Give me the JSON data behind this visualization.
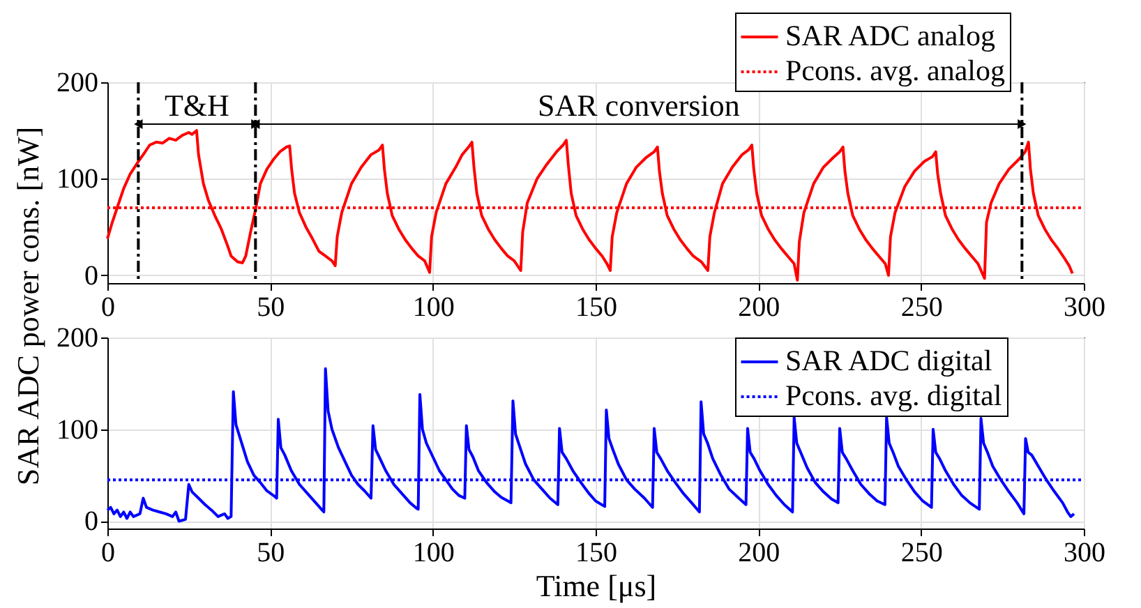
{
  "chart_data": [
    {
      "type": "line",
      "ylabel": "SAR ADC power cons. [nW]",
      "xlim": [
        0,
        300
      ],
      "xticks": [
        0,
        50,
        100,
        150,
        200,
        250,
        300
      ],
      "ylim": [
        -8,
        200
      ],
      "yticks": [
        0,
        100,
        200
      ],
      "grid": true,
      "legend": "top right",
      "series": [
        {
          "name": "SAR ADC analog",
          "color": "#ff0000",
          "line_style": "solid",
          "x": [
            0,
            1.5,
            3,
            5,
            7,
            9.5,
            11,
            13,
            15,
            17,
            19,
            21,
            23,
            25,
            26,
            27.4,
            28,
            29.5,
            31,
            33,
            35,
            37,
            38,
            40,
            41.5,
            42.5,
            44,
            45.5,
            47,
            49,
            51,
            53,
            55,
            56,
            56.6,
            57.5,
            59,
            61,
            63,
            65,
            67,
            69,
            70,
            70.6,
            72,
            75,
            78,
            81,
            83.5,
            84.5,
            85.1,
            86,
            87.5,
            89.5,
            91.5,
            93.5,
            95.5,
            97.5,
            99,
            99.6,
            101,
            104,
            107,
            109,
            111,
            112,
            112.6,
            113.5,
            115,
            117,
            119,
            121,
            123,
            125,
            127,
            127.6,
            129,
            132,
            135,
            138,
            140,
            141,
            141.6,
            142.5,
            144,
            146,
            148,
            150,
            152,
            153.5,
            154.5,
            155.1,
            156.5,
            159.5,
            162.5,
            165.5,
            168,
            169,
            169.6,
            170.5,
            172,
            174,
            176,
            178,
            180,
            182.5,
            184.5,
            185.1,
            186.5,
            189,
            192,
            195,
            197,
            198,
            198.6,
            199.5,
            201,
            203,
            205,
            207,
            209,
            211,
            212,
            212.6,
            214,
            217,
            220,
            223,
            225,
            226,
            226.6,
            227.5,
            229,
            231,
            233,
            235,
            237,
            239,
            240,
            240.6,
            242,
            245,
            248,
            251,
            253.5,
            254.5,
            255.1,
            256,
            257.5,
            259.5,
            261.5,
            263.5,
            265.5,
            267.5,
            269.5,
            270.1,
            271.5,
            274,
            277,
            280,
            282,
            283,
            283.6,
            284.5,
            286,
            288,
            290,
            292,
            294,
            295.5,
            296.5
          ],
          "values": [
            38,
            55,
            70,
            90,
            105,
            118,
            125,
            135,
            138,
            137,
            142,
            140,
            145,
            148,
            146,
            150,
            125,
            95,
            78,
            62,
            48,
            30,
            20,
            14,
            13,
            20,
            45,
            68,
            95,
            110,
            120,
            128,
            133,
            134,
            110,
            85,
            65,
            50,
            38,
            25,
            20,
            15,
            10,
            40,
            65,
            95,
            112,
            125,
            130,
            135,
            110,
            85,
            62,
            48,
            37,
            28,
            20,
            15,
            3,
            40,
            65,
            95,
            112,
            125,
            133,
            138,
            113,
            85,
            62,
            48,
            37,
            28,
            20,
            15,
            5,
            45,
            75,
            100,
            115,
            128,
            135,
            140,
            115,
            85,
            62,
            48,
            37,
            28,
            20,
            12,
            5,
            40,
            65,
            95,
            112,
            122,
            128,
            133,
            108,
            85,
            62,
            48,
            37,
            28,
            20,
            14,
            5,
            40,
            65,
            95,
            112,
            125,
            130,
            135,
            110,
            85,
            62,
            48,
            37,
            28,
            20,
            12,
            -5,
            35,
            65,
            95,
            112,
            122,
            128,
            133,
            108,
            85,
            62,
            48,
            37,
            28,
            20,
            12,
            0,
            40,
            65,
            92,
            108,
            118,
            123,
            128,
            105,
            85,
            62,
            48,
            37,
            28,
            20,
            12,
            -3,
            55,
            75,
            95,
            110,
            120,
            128,
            138,
            110,
            85,
            62,
            48,
            37,
            28,
            18,
            10,
            2
          ]
        },
        {
          "name": "Pcons. avg. analog",
          "color": "#ff0000",
          "line_style": "dotted",
          "x": [
            0,
            300
          ],
          "values": [
            70,
            70
          ]
        }
      ],
      "ref_lines": [
        {
          "axis": "x",
          "value": 9.5,
          "color": "#000000",
          "line_style": "dashed"
        },
        {
          "axis": "x",
          "value": 45.5,
          "color": "#000000",
          "line_style": "dashed"
        },
        {
          "axis": "x",
          "value": 281,
          "color": "#000000",
          "line_style": "dashed"
        }
      ],
      "annotations": [
        "T&H",
        "SAR conversion"
      ]
    },
    {
      "type": "line",
      "xlabel": "Time [μs]",
      "xlim": [
        0,
        300
      ],
      "xticks": [
        0,
        50,
        100,
        150,
        200,
        250,
        300
      ],
      "ylim": [
        -8,
        200
      ],
      "yticks": [
        0,
        100,
        200
      ],
      "grid": true,
      "legend": "top right",
      "series": [
        {
          "name": "SAR ADC digital",
          "color": "#0000ff",
          "line_style": "solid",
          "x": [
            0,
            1,
            2,
            3,
            4,
            5,
            6,
            7,
            8,
            10,
            11,
            12,
            14,
            16,
            18,
            20,
            21,
            22,
            24,
            25,
            26,
            28,
            30,
            32,
            34,
            36,
            37,
            38,
            38.7,
            39.5,
            41,
            43,
            45,
            47,
            49,
            51,
            52,
            52.5,
            53.3,
            54.5,
            56.5,
            59,
            62,
            64,
            66,
            66.5,
            67,
            67.8,
            69,
            71,
            73,
            75,
            77,
            79,
            81,
            81.6,
            82.4,
            83.5,
            85.5,
            88,
            91,
            93,
            95,
            95.5,
            96,
            96.8,
            98,
            100,
            102,
            104,
            106,
            108,
            109.8,
            110.3,
            111.1,
            112.3,
            114,
            116.5,
            119,
            121,
            124,
            124.6,
            125.4,
            126.6,
            128.5,
            131,
            133.5,
            136,
            138.4,
            138.9,
            139.7,
            141,
            143,
            145.5,
            148,
            150,
            152.8,
            153.3,
            154.1,
            155.3,
            157,
            159.5,
            162,
            165,
            167.5,
            168,
            168.8,
            170,
            172,
            174.5,
            177,
            179.5,
            181.9,
            182.4,
            183.2,
            184.4,
            186,
            188.5,
            191,
            194,
            196.2,
            196.7,
            197.5,
            198.7,
            200.5,
            203,
            205.5,
            208,
            210.5,
            211,
            211.8,
            213,
            215,
            217.5,
            220,
            222.5,
            224.5,
            225,
            225.8,
            227,
            229,
            231.5,
            234,
            236.5,
            238.9,
            239.4,
            240.2,
            241.4,
            243,
            245.5,
            248,
            250.5,
            253.2,
            253.7,
            254.5,
            255.7,
            257.5,
            260,
            262.5,
            265,
            267.9,
            268.4,
            269.2,
            270.4,
            272,
            274.5,
            277,
            279.5,
            281.6,
            282.1,
            282.9,
            284,
            286,
            288.5,
            291,
            293.5,
            295,
            296,
            297
          ],
          "values": [
            12,
            15,
            8,
            12,
            5,
            10,
            3,
            10,
            5,
            8,
            25,
            15,
            12,
            10,
            8,
            5,
            10,
            0,
            2,
            40,
            32,
            25,
            18,
            12,
            5,
            8,
            3,
            5,
            141,
            105,
            88,
            65,
            50,
            42,
            33,
            28,
            25,
            111,
            80,
            72,
            55,
            40,
            28,
            20,
            12,
            10,
            166,
            120,
            100,
            80,
            65,
            50,
            40,
            33,
            25,
            104,
            78,
            70,
            55,
            40,
            28,
            20,
            14,
            13,
            138,
            100,
            85,
            70,
            55,
            45,
            35,
            28,
            25,
            104,
            78,
            70,
            55,
            42,
            32,
            26,
            20,
            131,
            95,
            82,
            62,
            45,
            35,
            25,
            18,
            101,
            75,
            68,
            55,
            42,
            30,
            22,
            16,
            121,
            90,
            78,
            62,
            45,
            35,
            25,
            15,
            101,
            75,
            68,
            55,
            42,
            30,
            20,
            10,
            130,
            95,
            85,
            68,
            50,
            35,
            25,
            18,
            101,
            75,
            68,
            55,
            40,
            28,
            18,
            10,
            113,
            85,
            75,
            58,
            42,
            32,
            24,
            20,
            101,
            75,
            68,
            55,
            40,
            30,
            22,
            18,
            113,
            85,
            75,
            60,
            45,
            32,
            22,
            15,
            100,
            75,
            68,
            55,
            40,
            28,
            20,
            13,
            112,
            85,
            75,
            60,
            45,
            32,
            20,
            8,
            90,
            75,
            72,
            60,
            45,
            32,
            20,
            10,
            5,
            8
          ]
        },
        {
          "name": "Pcons. avg. digital",
          "color": "#0000ff",
          "line_style": "dotted",
          "x": [
            0,
            300
          ],
          "values": [
            45,
            45
          ]
        }
      ]
    }
  ]
}
